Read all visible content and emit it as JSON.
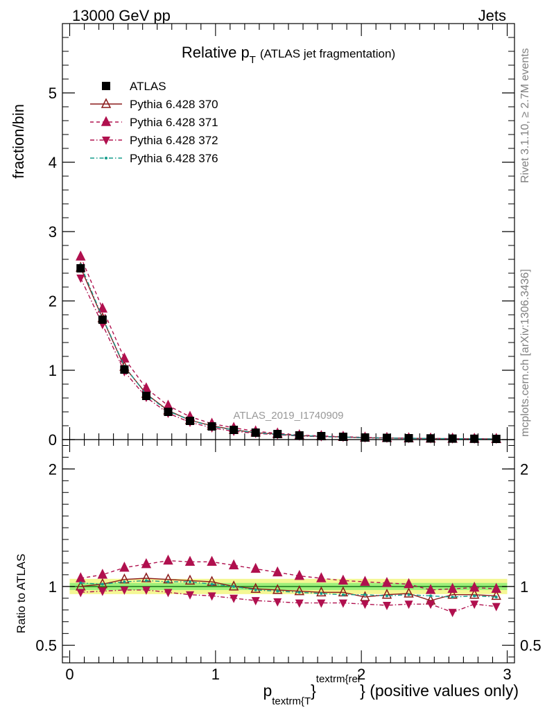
{
  "header": {
    "left": "13000 GeV pp",
    "right": "Jets"
  },
  "title": {
    "main": "Relative p",
    "sub": "T",
    "rest": "(ATLAS jet fragmentation)"
  },
  "side_labels": {
    "rivet": "Rivet 3.1.10, ≥ 2.7M events",
    "mcplots": "mcplots.cern.ch [arXiv:1306.3436]"
  },
  "watermark": "ATLAS_2019_I1740909",
  "xlabel": {
    "p": "p",
    "sub": "textrm{T",
    "brace": "}",
    "sup": "textrm{rel",
    "rest": "} (positive values only)"
  },
  "colors": {
    "atlas": "#000000",
    "p370": "#8b1a1a",
    "p371": "#b0104e",
    "p372": "#b0104e",
    "p376": "#139b8a",
    "band_outer": "#f4f794",
    "band_inner": "#9eef7a",
    "ref_line": "#1a7a1a"
  },
  "chart_data": [
    {
      "type": "line",
      "panel": "main",
      "ylabel": "fraction/bin",
      "xlim": [
        -0.05,
        3.05
      ],
      "ylim": [
        0,
        6
      ],
      "yticks": [
        {
          "v": 0,
          "label": "0"
        },
        {
          "v": 1,
          "label": "1"
        },
        {
          "v": 2,
          "label": "2"
        },
        {
          "v": 3,
          "label": "3"
        },
        {
          "v": 4,
          "label": "4"
        },
        {
          "v": 5,
          "label": "5"
        }
      ],
      "x": [
        0.075,
        0.225,
        0.375,
        0.525,
        0.675,
        0.825,
        0.975,
        1.125,
        1.275,
        1.425,
        1.575,
        1.725,
        1.875,
        2.025,
        2.175,
        2.325,
        2.475,
        2.625,
        2.775,
        2.925
      ],
      "legend": "top-left",
      "series": [
        {
          "name": "ATLAS",
          "key": "atlas",
          "marker": "square",
          "line": "none",
          "values": [
            2.47,
            1.73,
            1.01,
            0.63,
            0.4,
            0.27,
            0.19,
            0.14,
            0.1,
            0.08,
            0.06,
            0.05,
            0.04,
            0.03,
            0.025,
            0.02,
            0.017,
            0.014,
            0.012,
            0.01
          ]
        },
        {
          "name": "Pythia 6.428 370",
          "key": "p370",
          "marker": "triangle-up-open",
          "line": "solid",
          "values": [
            2.48,
            1.75,
            1.05,
            0.66,
            0.42,
            0.28,
            0.2,
            0.14,
            0.1,
            0.078,
            0.058,
            0.047,
            0.038,
            0.027,
            0.023,
            0.019,
            0.015,
            0.013,
            0.011,
            0.009
          ]
        },
        {
          "name": "Pythia 6.428 371",
          "key": "p371",
          "marker": "triangle-up",
          "line": "dashed",
          "values": [
            2.64,
            1.89,
            1.17,
            0.74,
            0.49,
            0.33,
            0.23,
            0.17,
            0.12,
            0.09,
            0.065,
            0.052,
            0.042,
            0.031,
            0.025,
            0.02,
            0.016,
            0.014,
            0.012,
            0.01
          ]
        },
        {
          "name": "Pythia 6.428 372",
          "key": "p372",
          "marker": "triangle-down",
          "line": "dashdot",
          "values": [
            2.33,
            1.66,
            0.98,
            0.61,
            0.38,
            0.25,
            0.17,
            0.12,
            0.09,
            0.07,
            0.052,
            0.042,
            0.034,
            0.025,
            0.021,
            0.017,
            0.014,
            0.011,
            0.01,
            0.008
          ]
        },
        {
          "name": "Pythia 6.428 376",
          "key": "p376",
          "marker": "dot",
          "line": "dashdot",
          "values": [
            2.52,
            1.76,
            1.06,
            0.65,
            0.41,
            0.28,
            0.19,
            0.14,
            0.1,
            0.077,
            0.058,
            0.046,
            0.037,
            0.027,
            0.023,
            0.019,
            0.016,
            0.013,
            0.011,
            0.009
          ]
        }
      ]
    },
    {
      "type": "line",
      "panel": "ratio",
      "ylabel": "Ratio to ATLAS",
      "xlim": [
        -0.05,
        3.05
      ],
      "ylim": [
        0.35,
        2.25
      ],
      "yticks": [
        {
          "v": 0.5,
          "label": "0.5"
        },
        {
          "v": 1,
          "label": "1"
        },
        {
          "v": 2,
          "label": "2"
        }
      ],
      "xticks": [
        {
          "v": 0,
          "label": "0"
        },
        {
          "v": 1,
          "label": "1"
        },
        {
          "v": 2,
          "label": "2"
        },
        {
          "v": 3,
          "label": "3"
        }
      ],
      "x": [
        0.075,
        0.225,
        0.375,
        0.525,
        0.675,
        0.825,
        0.975,
        1.125,
        1.275,
        1.425,
        1.575,
        1.725,
        1.875,
        2.025,
        2.175,
        2.325,
        2.475,
        2.625,
        2.775,
        2.925
      ],
      "band": {
        "inner": 0.03,
        "outer": 0.065
      },
      "series": [
        {
          "name": "Pythia 6.428 370",
          "key": "p370",
          "marker": "triangle-up-open",
          "line": "solid",
          "values": [
            1.0,
            1.02,
            1.06,
            1.07,
            1.06,
            1.05,
            1.04,
            1.0,
            0.98,
            0.97,
            0.96,
            0.95,
            0.95,
            0.91,
            0.93,
            0.94,
            0.88,
            0.93,
            0.93,
            0.92
          ]
        },
        {
          "name": "Pythia 6.428 371",
          "key": "p371",
          "marker": "triangle-up",
          "line": "dashed",
          "values": [
            1.07,
            1.1,
            1.16,
            1.19,
            1.22,
            1.21,
            1.21,
            1.18,
            1.15,
            1.12,
            1.09,
            1.07,
            1.05,
            1.04,
            1.03,
            1.02,
            0.97,
            0.98,
            0.99,
            0.98
          ]
        },
        {
          "name": "Pythia 6.428 372",
          "key": "p372",
          "marker": "triangle-down",
          "line": "dashdot",
          "values": [
            0.95,
            0.96,
            0.97,
            0.97,
            0.95,
            0.93,
            0.92,
            0.9,
            0.88,
            0.87,
            0.86,
            0.86,
            0.86,
            0.85,
            0.84,
            0.85,
            0.85,
            0.78,
            0.85,
            0.83
          ]
        },
        {
          "name": "Pythia 6.428 376",
          "key": "p376",
          "marker": "dot",
          "line": "dashdot",
          "values": [
            1.03,
            1.02,
            1.04,
            1.05,
            1.04,
            1.04,
            1.02,
            1.0,
            0.97,
            0.96,
            0.95,
            0.94,
            0.93,
            0.93,
            0.92,
            0.93,
            0.92,
            0.91,
            0.92,
            0.91
          ]
        }
      ]
    }
  ]
}
